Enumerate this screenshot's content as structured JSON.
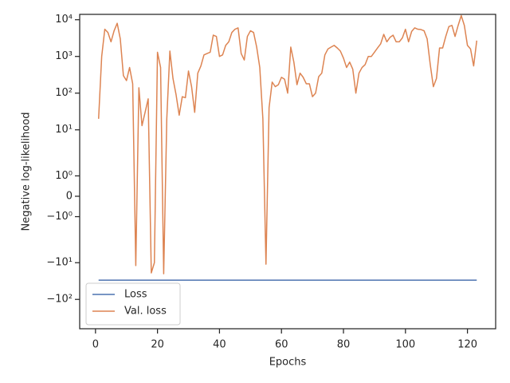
{
  "chart_data": {
    "type": "line",
    "xlabel": "Epochs",
    "ylabel": "Negative log-likelihood",
    "yscale": "symlog",
    "linthresh": 2,
    "linscale": 1,
    "xlim": [
      -5.1,
      129.1
    ],
    "xticks": [
      0,
      20,
      40,
      60,
      80,
      100,
      120
    ],
    "ylim": [
      -630,
      14000
    ],
    "yticks": [
      {
        "value": 10000,
        "label": "10⁴"
      },
      {
        "value": 1000,
        "label": "10³"
      },
      {
        "value": 100,
        "label": "10²"
      },
      {
        "value": 10,
        "label": "10¹"
      },
      {
        "value": 1,
        "label": "10⁰"
      },
      0,
      {
        "value": -1,
        "label": "−10⁰"
      },
      {
        "value": -10,
        "label": "−10¹"
      },
      {
        "value": -100,
        "label": "−10²"
      }
    ],
    "legend": "lower left",
    "x": [
      1,
      2,
      3,
      4,
      5,
      6,
      7,
      8,
      9,
      10,
      11,
      12,
      13,
      14,
      15,
      16,
      17,
      18,
      19,
      20,
      21,
      22,
      23,
      24,
      25,
      26,
      27,
      28,
      29,
      30,
      31,
      32,
      33,
      34,
      35,
      36,
      37,
      38,
      39,
      40,
      41,
      42,
      43,
      44,
      45,
      46,
      47,
      48,
      49,
      50,
      51,
      52,
      53,
      54,
      55,
      56,
      57,
      58,
      59,
      60,
      61,
      62,
      63,
      64,
      65,
      66,
      67,
      68,
      69,
      70,
      71,
      72,
      73,
      74,
      75,
      76,
      77,
      78,
      79,
      80,
      81,
      82,
      83,
      84,
      85,
      86,
      87,
      88,
      89,
      90,
      91,
      92,
      93,
      94,
      95,
      96,
      97,
      98,
      99,
      100,
      101,
      102,
      103,
      104,
      105,
      106,
      107,
      108,
      109,
      110,
      111,
      112,
      113,
      114,
      115,
      116,
      117,
      118,
      119,
      120,
      121,
      122,
      123
    ],
    "series": [
      {
        "name": "Loss",
        "color": "#4c72b0",
        "values": [
          -30,
          -30,
          -30,
          -30,
          -30,
          -30,
          -30,
          -30,
          -30,
          -30,
          -30,
          -30,
          -30,
          -30,
          -30,
          -30,
          -30,
          -30,
          -30,
          -30,
          -30,
          -30,
          -30,
          -30,
          -30,
          -30,
          -30,
          -30,
          -30,
          -30,
          -30,
          -30,
          -30,
          -30,
          -30,
          -30,
          -30,
          -30,
          -30,
          -30,
          -30,
          -30,
          -30,
          -30,
          -30,
          -30,
          -30,
          -30,
          -30,
          -30,
          -30,
          -30,
          -30,
          -30,
          -30,
          -30,
          -30,
          -30,
          -30,
          -30,
          -30,
          -30,
          -30,
          -30,
          -30,
          -30,
          -30,
          -30,
          -30,
          -30,
          -30,
          -30,
          -30,
          -30,
          -30,
          -30,
          -30,
          -30,
          -30,
          -30,
          -30,
          -30,
          -30,
          -30,
          -30,
          -30,
          -30,
          -30,
          -30,
          -30,
          -30,
          -30,
          -30,
          -30,
          -30,
          -30,
          -30,
          -30,
          -30,
          -30,
          -30,
          -30,
          -30,
          -30,
          -30,
          -30,
          -30,
          -30,
          -30,
          -30,
          -30,
          -30,
          -30,
          -30,
          -30,
          -30,
          -30,
          -30,
          -30,
          -30,
          -30,
          -30,
          -30
        ]
      },
      {
        "name": "Val. loss",
        "color": "#dd8452",
        "values": [
          20,
          1000,
          5500,
          4500,
          2500,
          5000,
          8000,
          3000,
          300,
          220,
          500,
          180,
          -12,
          140,
          13,
          30,
          70,
          -19,
          -10,
          1300,
          500,
          -20,
          20,
          1400,
          250,
          90,
          25,
          80,
          75,
          400,
          150,
          30,
          350,
          550,
          1100,
          1200,
          1300,
          3800,
          3500,
          1000,
          1100,
          2000,
          2500,
          4500,
          5500,
          6000,
          1200,
          800,
          3500,
          5000,
          4500,
          1800,
          500,
          20,
          -11,
          40,
          200,
          150,
          170,
          270,
          240,
          100,
          1800,
          700,
          170,
          350,
          270,
          180,
          180,
          80,
          100,
          280,
          350,
          1100,
          1600,
          1800,
          2000,
          1700,
          1400,
          900,
          500,
          700,
          450,
          100,
          350,
          500,
          600,
          1000,
          1000,
          1300,
          1700,
          2200,
          4000,
          2500,
          3300,
          3800,
          2500,
          2500,
          3200,
          5500,
          2500,
          4800,
          6000,
          5500,
          5400,
          5000,
          3000,
          600,
          150,
          250,
          1700,
          1700,
          3500,
          6500,
          7000,
          3500,
          7000,
          13000,
          7000,
          2000,
          1600,
          550,
          2700
        ]
      }
    ]
  }
}
